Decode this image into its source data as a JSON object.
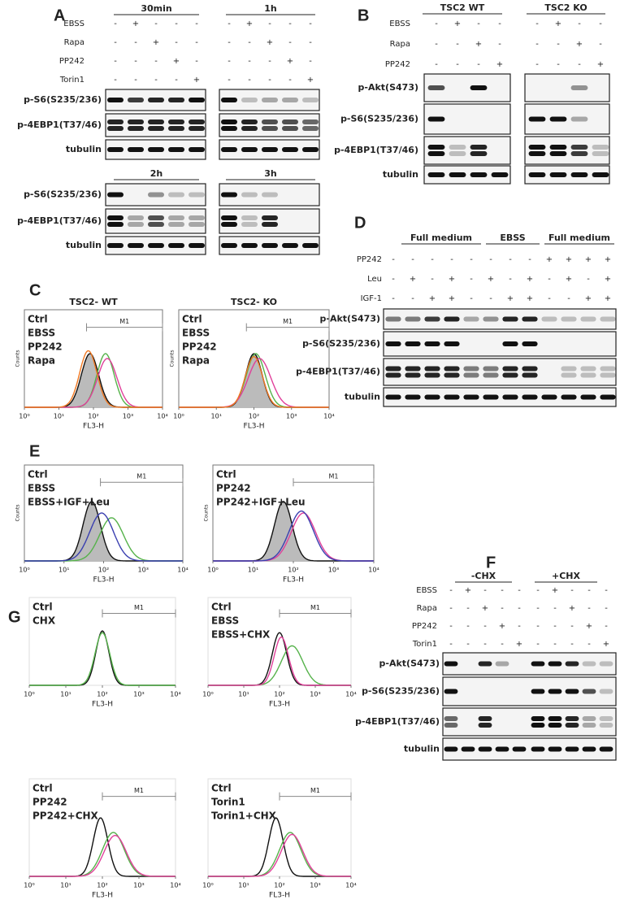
{
  "A": {
    "letter": "A",
    "groups": [
      "30min",
      "1h"
    ],
    "conditions": [
      {
        "name": "EBSS",
        "signs": [
          "-",
          "+",
          "-",
          "-",
          "-",
          "-",
          "+",
          "-",
          "-",
          "-"
        ]
      },
      {
        "name": "Rapa",
        "signs": [
          "-",
          "-",
          "+",
          "-",
          "-",
          "-",
          "-",
          "+",
          "-",
          "-"
        ]
      },
      {
        "name": "PP242",
        "signs": [
          "-",
          "-",
          "-",
          "+",
          "-",
          "-",
          "-",
          "-",
          "+",
          "-"
        ]
      },
      {
        "name": "Torin1",
        "signs": [
          "-",
          "-",
          "-",
          "-",
          "+",
          "-",
          "-",
          "-",
          "-",
          "+"
        ]
      }
    ],
    "blots": [
      "p-S6(S235/236)",
      "p-4EBP1(T37/46)",
      "tubulin"
    ],
    "groups_lower": [
      "2h",
      "3h"
    ],
    "blots_lower": [
      "p-S6(S235/236)",
      "p-4EBP1(T37/46)",
      "tubulin"
    ]
  },
  "B": {
    "letter": "B",
    "groups": [
      "TSC2 WT",
      "TSC2 KO"
    ],
    "conditions": [
      {
        "name": "EBSS",
        "signs": [
          "-",
          "+",
          "-",
          "-",
          "-",
          "+",
          "-",
          "-"
        ]
      },
      {
        "name": "Rapa",
        "signs": [
          "-",
          "-",
          "+",
          "-",
          "-",
          "-",
          "+",
          "-"
        ]
      },
      {
        "name": "PP242",
        "signs": [
          "-",
          "-",
          "-",
          "+",
          "-",
          "-",
          "-",
          "+"
        ]
      }
    ],
    "blots": [
      "p-Akt(S473)",
      "p-S6(S235/236)",
      "p-4EBP1(T37/46)",
      "tubulin"
    ]
  },
  "C": {
    "letter": "C",
    "plots": [
      {
        "title": "TSC2- WT",
        "legend": [
          {
            "name": "Ctrl",
            "color": "#111111"
          },
          {
            "name": "EBSS",
            "color": "#55b24a"
          },
          {
            "name": "PP242",
            "color": "#e0409a"
          },
          {
            "name": "Rapa",
            "color": "#f07822"
          }
        ]
      },
      {
        "title": "TSC2- KO",
        "legend": [
          {
            "name": "Ctrl",
            "color": "#111111"
          },
          {
            "name": "EBSS",
            "color": "#55b24a"
          },
          {
            "name": "PP242",
            "color": "#e0409a"
          },
          {
            "name": "Rapa",
            "color": "#f07822"
          }
        ]
      }
    ]
  },
  "D": {
    "letter": "D",
    "groups": [
      "Full medium",
      "EBSS",
      "Full medium"
    ],
    "conditions": [
      {
        "name": "PP242",
        "signs": [
          "-",
          "-",
          "-",
          "-",
          "-",
          "-",
          "-",
          "-",
          "+",
          "+",
          "+",
          "+"
        ]
      },
      {
        "name": "Leu",
        "signs": [
          "-",
          "+",
          "-",
          "+",
          "-",
          "+",
          "-",
          "+",
          "-",
          "+",
          "-",
          "+"
        ]
      },
      {
        "name": "IGF-1",
        "signs": [
          "-",
          "-",
          "+",
          "+",
          "-",
          "-",
          "+",
          "+",
          "-",
          "-",
          "+",
          "+"
        ]
      }
    ],
    "blots": [
      "p-Akt(S473)",
      "p-S6(S235/236)",
      "p-4EBP1(T37/46)",
      "tubulin"
    ]
  },
  "E": {
    "letter": "E",
    "plots": [
      {
        "legend": [
          {
            "name": "Ctrl",
            "color": "#111111"
          },
          {
            "name": "EBSS",
            "color": "#55b24a"
          },
          {
            "name": "EBSS+IGF+Leu",
            "color": "#3a3fb0"
          }
        ]
      },
      {
        "legend": [
          {
            "name": "Ctrl",
            "color": "#111111"
          },
          {
            "name": "PP242",
            "color": "#e0409a"
          },
          {
            "name": "PP242+IGF+Leu",
            "color": "#3a3fb0"
          }
        ]
      }
    ]
  },
  "F": {
    "letter": "F",
    "groups": [
      "-CHX",
      "+CHX"
    ],
    "conditions": [
      {
        "name": "EBSS",
        "signs": [
          "-",
          "+",
          "-",
          "-",
          "-",
          "-",
          "+",
          "-",
          "-",
          "-"
        ]
      },
      {
        "name": "Rapa",
        "signs": [
          "-",
          "-",
          "+",
          "-",
          "-",
          "-",
          "-",
          "+",
          "-",
          "-"
        ]
      },
      {
        "name": "PP242",
        "signs": [
          "-",
          "-",
          "-",
          "+",
          "-",
          "-",
          "-",
          "-",
          "+",
          "-"
        ]
      },
      {
        "name": "Torin1",
        "signs": [
          "-",
          "-",
          "-",
          "-",
          "+",
          "-",
          "-",
          "-",
          "-",
          "+"
        ]
      }
    ],
    "blots": [
      "p-Akt(S473)",
      "p-S6(S235/236)",
      "p-4EBP1(T37/46)",
      "tubulin"
    ]
  },
  "G": {
    "letter": "G",
    "plots": [
      {
        "legend": [
          {
            "name": "Ctrl",
            "color": "#111111"
          },
          {
            "name": "CHX",
            "color": "#55b24a"
          }
        ]
      },
      {
        "legend": [
          {
            "name": "Ctrl",
            "color": "#111111"
          },
          {
            "name": "EBSS",
            "color": "#55b24a"
          },
          {
            "name": "EBSS+CHX",
            "color": "#e0409a"
          }
        ]
      },
      {
        "legend": [
          {
            "name": "Ctrl",
            "color": "#111111"
          },
          {
            "name": "PP242",
            "color": "#55b24a"
          },
          {
            "name": "PP242+CHX",
            "color": "#e0409a"
          }
        ]
      },
      {
        "legend": [
          {
            "name": "Ctrl",
            "color": "#111111"
          },
          {
            "name": "Torin1",
            "color": "#55b24a"
          },
          {
            "name": "Torin1+CHX",
            "color": "#e0409a"
          }
        ]
      }
    ]
  },
  "histogram_axis": {
    "xlabel": "FL3-H",
    "ylabel": "Counts",
    "gate": "M1",
    "xticks": [
      {
        "value": 0,
        "label": "10⁰"
      },
      {
        "value": 1,
        "label": "10¹"
      },
      {
        "value": 2,
        "label": "10²"
      },
      {
        "value": 3,
        "label": "10³"
      },
      {
        "value": 4,
        "label": "10⁴"
      }
    ]
  }
}
